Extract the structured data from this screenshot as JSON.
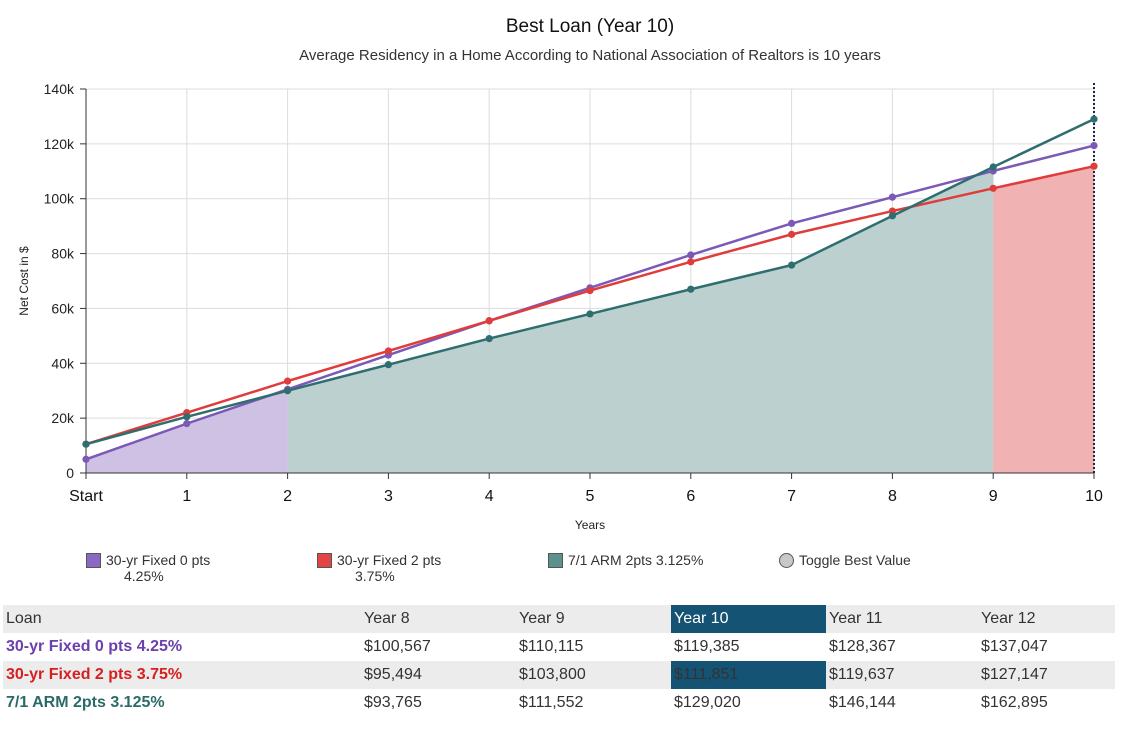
{
  "chart_data": {
    "type": "line",
    "title": "Best Loan (Year 10)",
    "subtitle": "Average Residency in a Home According to National Association of Realtors is 10 years",
    "xlabel": "Years",
    "ylabel": "Net Cost in $",
    "categories": [
      "Start",
      "1",
      "2",
      "3",
      "4",
      "5",
      "6",
      "7",
      "8",
      "9",
      "10"
    ],
    "ylim": [
      0,
      140000
    ],
    "yticks": [
      0,
      20000,
      40000,
      60000,
      80000,
      100000,
      120000,
      140000
    ],
    "ytick_labels": [
      "0",
      "20k",
      "40k",
      "60k",
      "80k",
      "100k",
      "120k",
      "140k"
    ],
    "grid": true,
    "series": [
      {
        "name": "30-yr Fixed 0 pts 4.25%",
        "color": "#7b59b6",
        "fill": "#cfc1e4",
        "values": [
          5000,
          18000,
          30500,
          43000,
          55500,
          67500,
          79500,
          91000,
          100567,
          110115,
          119385
        ]
      },
      {
        "name": "30-yr Fixed 2 pts 3.75%",
        "color": "#e03c3c",
        "fill": "#f0b2b2",
        "values": [
          10500,
          22000,
          33500,
          44500,
          55500,
          66500,
          77000,
          87000,
          95494,
          103800,
          111851
        ]
      },
      {
        "name": "7/1 ARM 2pts 3.125%",
        "color": "#2f6e6e",
        "fill": "#bcd1cf",
        "values": [
          10500,
          20500,
          30000,
          39500,
          49000,
          58000,
          67000,
          75800,
          93765,
          111552,
          129020
        ]
      }
    ],
    "best_value_regions": [
      {
        "from": "Start",
        "to": "2",
        "series": "30-yr Fixed 0 pts 4.25%"
      },
      {
        "from": "2",
        "to": "9",
        "series": "7/1 ARM 2pts 3.125%"
      },
      {
        "from": "9",
        "to": "10",
        "series": "30-yr Fixed 2 pts 3.75%"
      }
    ],
    "highlight_x": "10"
  },
  "legend": {
    "items": [
      {
        "line1": "30-yr Fixed 0 pts",
        "line2": "4.25%",
        "color": "#8a68c4"
      },
      {
        "line1": "30-yr Fixed 2 pts",
        "line2": "3.75%",
        "color": "#e14545"
      },
      {
        "line1": "7/1 ARM 2pts 3.125%",
        "line2": "",
        "color": "#5b9290"
      }
    ],
    "toggle_label": "Toggle Best Value"
  },
  "table": {
    "headers": [
      "Loan",
      "Year 8",
      "Year 9",
      "Year 10",
      "Year 11",
      "Year 12"
    ],
    "highlight_col": 3,
    "rows": [
      {
        "name": "30-yr Fixed 0 pts 4.25%",
        "color": "#6a3fae",
        "values": [
          "$100,567",
          "$110,115",
          "$119,385",
          "$128,367",
          "$137,047"
        ]
      },
      {
        "name": "30-yr Fixed 2 pts 3.75%",
        "color": "#d61f1f",
        "values": [
          "$95,494",
          "$103,800",
          "$111,851",
          "$119,637",
          "$127,147"
        ]
      },
      {
        "name": "7/1 ARM 2pts 3.125%",
        "color": "#2a6b68",
        "values": [
          "$93,765",
          "$111,552",
          "$129,020",
          "$146,144",
          "$162,895"
        ]
      }
    ],
    "best_cell": {
      "row": 1,
      "col": 3
    }
  }
}
